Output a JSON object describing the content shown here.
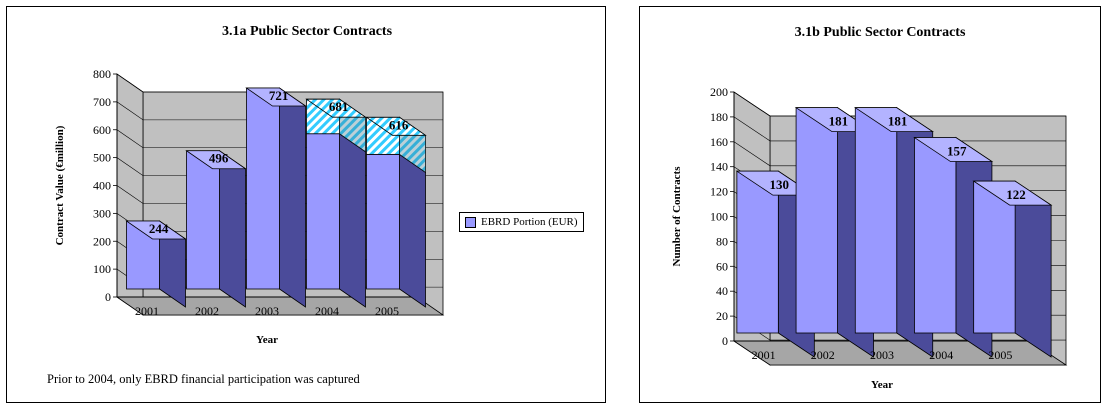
{
  "colors": {
    "bar_front": "#9999ff",
    "bar_top": "#b3b3ff",
    "bar_side": "#4b4b9a",
    "wall": "#c0c0c0",
    "floor": "#a6a6a6",
    "hatch": "#33ccff"
  },
  "chart_data": [
    {
      "type": "bar",
      "title": "3.1a Public Sector Contracts",
      "xlabel": "Year",
      "ylabel": "Contract Value (€million)",
      "categories": [
        "2001",
        "2002",
        "2003",
        "2004",
        "2005"
      ],
      "series": [
        {
          "name": "EBRD Portion (EUR)",
          "values": [
            244,
            496,
            721,
            557,
            483
          ]
        },
        {
          "name": "",
          "values": [
            0,
            0,
            0,
            124,
            133
          ]
        }
      ],
      "data_labels": [
        "244",
        "496",
        "721",
        "681",
        "616"
      ],
      "ylim": [
        0,
        800
      ],
      "yticks": [
        "0",
        "100",
        "200",
        "300",
        "400",
        "500",
        "600",
        "700",
        "800"
      ],
      "grid": true,
      "legend": "right",
      "note": "Prior to 2004, only EBRD financial participation  was captured"
    },
    {
      "type": "bar",
      "title": "3.1b Public Sector Contracts",
      "xlabel": "Year",
      "ylabel": "Number of Contracts",
      "categories": [
        "2001",
        "2002",
        "2003",
        "2004",
        "2005"
      ],
      "series": [
        {
          "values": [
            130,
            181,
            181,
            157,
            122
          ]
        }
      ],
      "data_labels": [
        "130",
        "181",
        "181",
        "157",
        "122"
      ],
      "ylim": [
        0,
        200
      ],
      "yticks": [
        "0",
        "20",
        "40",
        "60",
        "80",
        "100",
        "120",
        "140",
        "160",
        "180",
        "200"
      ],
      "grid": true
    }
  ]
}
